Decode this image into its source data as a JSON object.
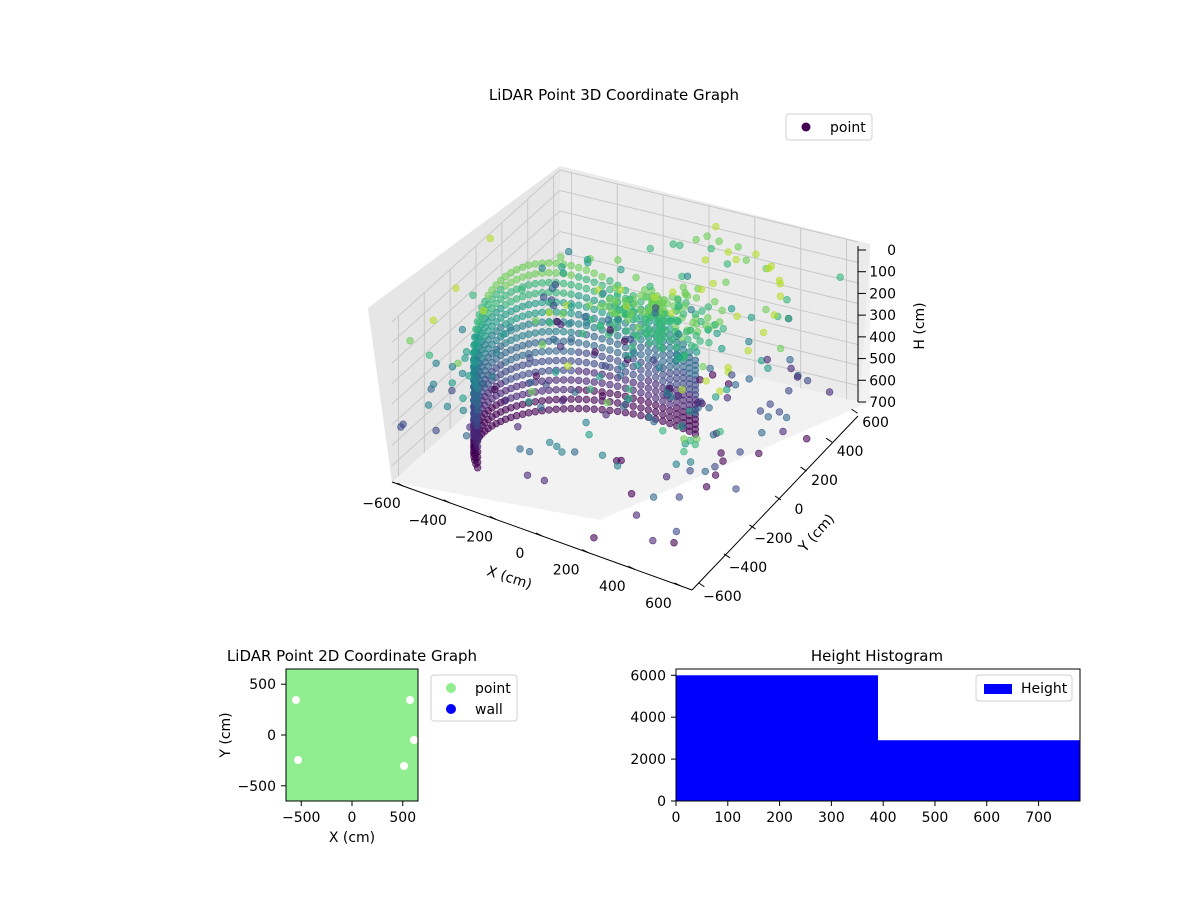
{
  "chart_data": [
    {
      "type": "scatter",
      "title": "LiDAR Point 3D Coordinate Graph",
      "xlabel": "X (cm)",
      "ylabel": "Y (cm)",
      "zlabel": "H (cm)",
      "x_ticks": [
        "−600",
        "−400",
        "−200",
        "0",
        "200",
        "400",
        "600"
      ],
      "y_ticks": [
        "−600",
        "−400",
        "−200",
        "0",
        "200",
        "400",
        "600"
      ],
      "z_ticks": [
        "0",
        "100",
        "200",
        "300",
        "400",
        "500",
        "600",
        "700"
      ],
      "xlim": [
        -650,
        650
      ],
      "ylim": [
        -650,
        650
      ],
      "zlim": [
        780,
        0
      ],
      "z_axis_inverted": true,
      "colormap": "viridis",
      "legend": {
        "placement": "top-right",
        "entries": [
          {
            "label": "point",
            "color": "#440154"
          }
        ]
      },
      "grid": true,
      "series": [
        {
          "name": "point",
          "note_points_approx": "dense arc wall (radius ~550 cm) spanning heights 0-780 cm, central mound near (100, 50), scattered points colored by height",
          "points": [
            [
              -500,
              200,
              700
            ],
            [
              -450,
              300,
              600
            ],
            [
              -400,
              400,
              500
            ],
            [
              -350,
              450,
              400
            ],
            [
              -300,
              500,
              300
            ],
            [
              -200,
              550,
              200
            ],
            [
              -100,
              550,
              150
            ],
            [
              0,
              550,
              100
            ],
            [
              100,
              550,
              80
            ],
            [
              200,
              520,
              60
            ],
            [
              300,
              480,
              40
            ],
            [
              400,
              420,
              30
            ],
            [
              480,
              340,
              20
            ],
            [
              540,
              240,
              10
            ],
            [
              580,
              120,
              5
            ],
            [
              600,
              0,
              0
            ],
            [
              600,
              -120,
              5
            ],
            [
              580,
              -240,
              10
            ],
            [
              540,
              -340,
              20
            ],
            [
              480,
              -420,
              30
            ],
            [
              0,
              0,
              50
            ],
            [
              100,
              50,
              30
            ],
            [
              150,
              100,
              20
            ],
            [
              50,
              -50,
              60
            ],
            [
              -100,
              100,
              80
            ],
            [
              200,
              0,
              40
            ],
            [
              -600,
              -600,
              100
            ],
            [
              600,
              600,
              150
            ],
            [
              -400,
              -500,
              250
            ],
            [
              300,
              -600,
              350
            ],
            [
              -200,
              -300,
              450
            ],
            [
              500,
              -200,
              550
            ]
          ]
        }
      ]
    },
    {
      "type": "scatter",
      "title": "LiDAR Point 2D Coordinate Graph",
      "xlabel": "X (cm)",
      "ylabel": "Y (cm)",
      "xlim": [
        -650,
        650
      ],
      "ylim": [
        -650,
        650
      ],
      "x_ticks": [
        -500,
        0,
        500
      ],
      "y_ticks": [
        -500,
        0,
        500
      ],
      "legend": {
        "placement": "outside-right",
        "entries": [
          {
            "label": "point",
            "color": "#90ee90"
          },
          {
            "label": "wall",
            "color": "#0000ff"
          }
        ]
      },
      "series": [
        {
          "name": "point",
          "color": "#90ee90",
          "note_points_approx": "dense cloud filling most of the plot area",
          "points": [
            [
              -600,
              600
            ],
            [
              -400,
              500
            ],
            [
              -200,
              550
            ],
            [
              0,
              400
            ],
            [
              200,
              500
            ],
            [
              400,
              500
            ],
            [
              600,
              300
            ],
            [
              -600,
              0
            ],
            [
              -300,
              100
            ],
            [
              0,
              0
            ],
            [
              300,
              -100
            ],
            [
              600,
              -200
            ],
            [
              -600,
              -600
            ],
            [
              -300,
              -500
            ],
            [
              0,
              -600
            ],
            [
              300,
              -550
            ],
            [
              600,
              -600
            ]
          ]
        },
        {
          "name": "wall",
          "color": "#0000ff",
          "points": []
        }
      ]
    },
    {
      "type": "bar",
      "title": "Height Histogram",
      "xlabel": "",
      "ylabel": "",
      "bins": [
        [
          0,
          390
        ],
        [
          390,
          780
        ]
      ],
      "values": [
        6000,
        2900
      ],
      "xlim": [
        0,
        780
      ],
      "ylim": [
        0,
        6300
      ],
      "x_ticks": [
        0,
        100,
        200,
        300,
        400,
        500,
        600,
        700
      ],
      "y_ticks": [
        0,
        2000,
        4000,
        6000
      ],
      "color": "#0000ff",
      "legend": {
        "placement": "top-right",
        "entries": [
          {
            "label": "Height",
            "color": "#0000ff"
          }
        ]
      }
    }
  ]
}
